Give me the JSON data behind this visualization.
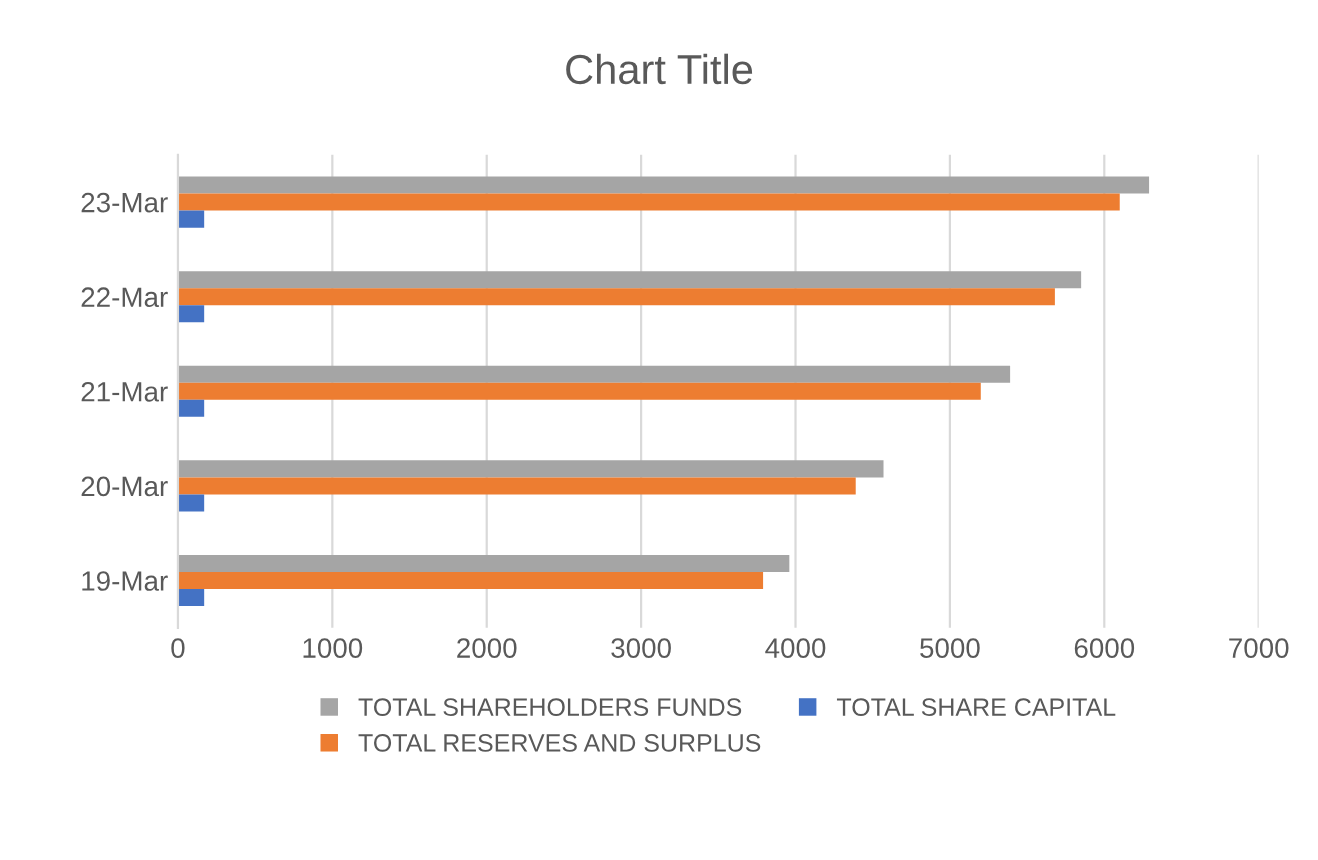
{
  "chart_data": {
    "type": "bar",
    "orientation": "horizontal",
    "title": "Chart Title",
    "categories": [
      "23-Mar",
      "22-Mar",
      "21-Mar",
      "20-Mar",
      "19-Mar"
    ],
    "series": [
      {
        "name": "TOTAL SHAREHOLDERS FUNDS",
        "color": "#a5a5a5",
        "values": [
          6290,
          5850,
          5390,
          4570,
          3960
        ]
      },
      {
        "name": "TOTAL RESERVES AND SURPLUS",
        "color": "#ed7d31",
        "values": [
          6100,
          5680,
          5200,
          4390,
          3790
        ]
      },
      {
        "name": "TOTAL SHARE CAPITAL",
        "color": "#4472c4",
        "values": [
          170,
          170,
          170,
          170,
          170
        ]
      }
    ],
    "xlim": [
      0,
      7000
    ],
    "xticks": [
      0,
      1000,
      2000,
      3000,
      4000,
      5000,
      6000,
      7000
    ],
    "grid": "x",
    "legend": "bottom"
  }
}
